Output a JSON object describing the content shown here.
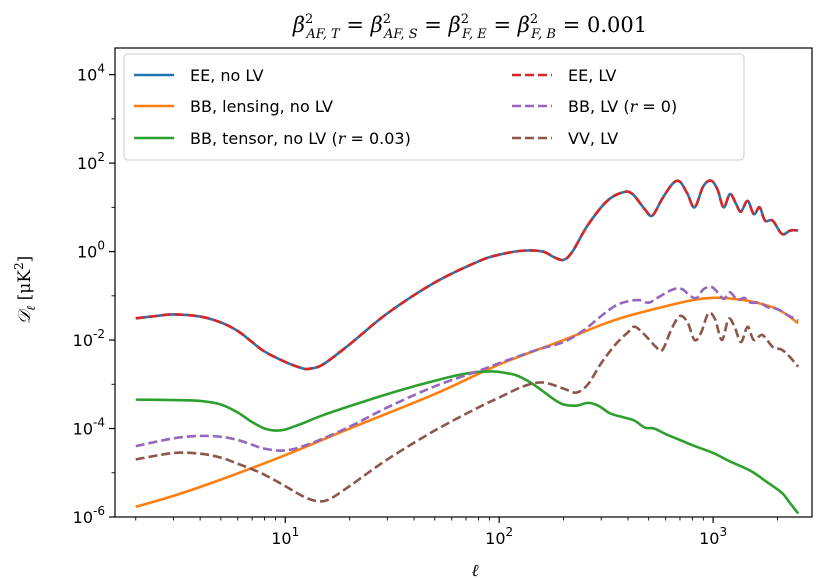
{
  "chart_data": {
    "type": "line",
    "title": "β²_{AF,T} = β²_{AF,S} = β²_{F,E} = β²_{F,B} = 0.001",
    "title_parts": {
      "beta": "β",
      "sup": "2",
      "sub1": "AF, T",
      "sub2": "AF, S",
      "sub3": "F, E",
      "sub4": "F, B",
      "eq": "=",
      "value": "0.001"
    },
    "xlabel": "ℓ",
    "ylabel_parts": {
      "main": "𝒟",
      "sub": "ℓ",
      "unit_open": "[μK",
      "unit_sup": "2",
      "unit_close": "]"
    },
    "x_scale": "log",
    "y_scale": "log",
    "xlim": [
      1.6,
      2900
    ],
    "ylim": [
      1e-06,
      40000.0
    ],
    "grid": false,
    "legend_position": "top",
    "xticks": [
      {
        "value": 10,
        "base": "10",
        "exp": "1"
      },
      {
        "value": 100,
        "base": "10",
        "exp": "2"
      },
      {
        "value": 1000,
        "base": "10",
        "exp": "3"
      }
    ],
    "yticks": [
      {
        "value": 1e-06,
        "base": "10",
        "exp": "-6"
      },
      {
        "value": 0.0001,
        "base": "10",
        "exp": "-4"
      },
      {
        "value": 0.01,
        "base": "10",
        "exp": "-2"
      },
      {
        "value": 1,
        "base": "10",
        "exp": "0"
      },
      {
        "value": 100,
        "base": "10",
        "exp": "2"
      },
      {
        "value": 10000,
        "base": "10",
        "exp": "4"
      }
    ],
    "series": [
      {
        "name": "EE, no LV",
        "color": "#1f77b4",
        "dash": false,
        "points": [
          [
            2,
            0.031
          ],
          [
            2.5,
            0.035
          ],
          [
            3,
            0.038
          ],
          [
            4,
            0.034
          ],
          [
            5,
            0.025
          ],
          [
            6,
            0.016
          ],
          [
            7,
            0.009
          ],
          [
            8,
            0.0055
          ],
          [
            10,
            0.0032
          ],
          [
            12,
            0.0023
          ],
          [
            13,
            0.00225
          ],
          [
            15,
            0.0028
          ],
          [
            20,
            0.008
          ],
          [
            30,
            0.04
          ],
          [
            50,
            0.2
          ],
          [
            80,
            0.6
          ],
          [
            100,
            0.85
          ],
          [
            130,
            1.05
          ],
          [
            160,
            1.0
          ],
          [
            180,
            0.75
          ],
          [
            200,
            0.65
          ],
          [
            220,
            1.0
          ],
          [
            260,
            4
          ],
          [
            320,
            14
          ],
          [
            380,
            22
          ],
          [
            420,
            20
          ],
          [
            480,
            9
          ],
          [
            520,
            6.5
          ],
          [
            580,
            16
          ],
          [
            650,
            35
          ],
          [
            700,
            38
          ],
          [
            760,
            20
          ],
          [
            820,
            10
          ],
          [
            900,
            30
          ],
          [
            980,
            40
          ],
          [
            1050,
            25
          ],
          [
            1120,
            10
          ],
          [
            1200,
            20
          ],
          [
            1280,
            12
          ],
          [
            1350,
            8
          ],
          [
            1450,
            14
          ],
          [
            1550,
            7
          ],
          [
            1650,
            10
          ],
          [
            1750,
            5
          ],
          [
            1900,
            5
          ],
          [
            2100,
            2.5
          ],
          [
            2300,
            3
          ],
          [
            2500,
            3
          ]
        ]
      },
      {
        "name": "BB, lensing, no LV",
        "color": "#ff7f0e",
        "dash": false,
        "points": [
          [
            2,
            1.7e-06
          ],
          [
            3,
            3e-06
          ],
          [
            5,
            7e-06
          ],
          [
            10,
            2.5e-05
          ],
          [
            20,
            0.0001
          ],
          [
            50,
            0.0006
          ],
          [
            100,
            0.0028
          ],
          [
            200,
            0.01
          ],
          [
            300,
            0.022
          ],
          [
            400,
            0.035
          ],
          [
            600,
            0.058
          ],
          [
            800,
            0.08
          ],
          [
            1000,
            0.09
          ],
          [
            1200,
            0.087
          ],
          [
            1500,
            0.075
          ],
          [
            2000,
            0.05
          ],
          [
            2500,
            0.024
          ]
        ]
      },
      {
        "name": "BB, tensor, no LV (r = 0.03)",
        "color": "#2ca02c",
        "dash": false,
        "points": [
          [
            2,
            0.00045
          ],
          [
            3,
            0.00044
          ],
          [
            4,
            0.00042
          ],
          [
            5,
            0.00035
          ],
          [
            6,
            0.00023
          ],
          [
            7,
            0.00014
          ],
          [
            8,
            0.0001
          ],
          [
            9,
            9e-05
          ],
          [
            10,
            9.5e-05
          ],
          [
            12,
            0.00013
          ],
          [
            15,
            0.0002
          ],
          [
            20,
            0.00032
          ],
          [
            30,
            0.0006
          ],
          [
            40,
            0.0009
          ],
          [
            50,
            0.0012
          ],
          [
            60,
            0.0015
          ],
          [
            70,
            0.00175
          ],
          [
            80,
            0.0019
          ],
          [
            90,
            0.00195
          ],
          [
            100,
            0.0019
          ],
          [
            120,
            0.0016
          ],
          [
            140,
            0.0011
          ],
          [
            160,
            0.0007
          ],
          [
            180,
            0.00046
          ],
          [
            200,
            0.00035
          ],
          [
            230,
            0.00033
          ],
          [
            260,
            0.00038
          ],
          [
            290,
            0.00033
          ],
          [
            330,
            0.00022
          ],
          [
            380,
            0.00018
          ],
          [
            430,
            0.00015
          ],
          [
            480,
            0.000105
          ],
          [
            530,
            0.0001
          ],
          [
            600,
            7.5e-05
          ],
          [
            700,
            5.5e-05
          ],
          [
            800,
            4.2e-05
          ],
          [
            1000,
            2.8e-05
          ],
          [
            1200,
            1.8e-05
          ],
          [
            1500,
            1.1e-05
          ],
          [
            1800,
            6e-06
          ],
          [
            2100,
            3.5e-06
          ],
          [
            2300,
            2e-06
          ],
          [
            2500,
            1.2e-06
          ]
        ]
      },
      {
        "name": "EE, LV",
        "color": "#d62728",
        "dash": true,
        "points": [
          [
            2,
            0.031
          ],
          [
            2.5,
            0.035
          ],
          [
            3,
            0.038
          ],
          [
            4,
            0.034
          ],
          [
            5,
            0.025
          ],
          [
            6,
            0.016
          ],
          [
            7,
            0.009
          ],
          [
            8,
            0.0055
          ],
          [
            10,
            0.0032
          ],
          [
            12,
            0.0023
          ],
          [
            13,
            0.00225
          ],
          [
            15,
            0.0028
          ],
          [
            20,
            0.008
          ],
          [
            30,
            0.04
          ],
          [
            50,
            0.2
          ],
          [
            80,
            0.6
          ],
          [
            100,
            0.85
          ],
          [
            130,
            1.05
          ],
          [
            160,
            1.0
          ],
          [
            180,
            0.75
          ],
          [
            200,
            0.65
          ],
          [
            220,
            1.0
          ],
          [
            260,
            4
          ],
          [
            320,
            14
          ],
          [
            380,
            22
          ],
          [
            420,
            20
          ],
          [
            480,
            9
          ],
          [
            520,
            6.5
          ],
          [
            580,
            16
          ],
          [
            650,
            35
          ],
          [
            700,
            38
          ],
          [
            760,
            20
          ],
          [
            820,
            10
          ],
          [
            900,
            30
          ],
          [
            980,
            40
          ],
          [
            1050,
            25
          ],
          [
            1120,
            10
          ],
          [
            1200,
            20
          ],
          [
            1280,
            12
          ],
          [
            1350,
            8
          ],
          [
            1450,
            14
          ],
          [
            1550,
            7
          ],
          [
            1650,
            10
          ],
          [
            1750,
            5
          ],
          [
            1900,
            5
          ],
          [
            2100,
            2.5
          ],
          [
            2300,
            3
          ],
          [
            2500,
            3
          ]
        ]
      },
      {
        "name": "BB, LV (r = 0)",
        "color": "#9467bd",
        "dash": true,
        "points": [
          [
            2,
            4e-05
          ],
          [
            3,
            6e-05
          ],
          [
            4,
            6.8e-05
          ],
          [
            5,
            6.5e-05
          ],
          [
            6,
            5.5e-05
          ],
          [
            7,
            4.3e-05
          ],
          [
            8,
            3.5e-05
          ],
          [
            10,
            3.2e-05
          ],
          [
            13,
            4.5e-05
          ],
          [
            20,
            0.00011
          ],
          [
            30,
            0.0003
          ],
          [
            50,
            0.0009
          ],
          [
            80,
            0.002
          ],
          [
            100,
            0.003
          ],
          [
            150,
            0.006
          ],
          [
            200,
            0.009
          ],
          [
            250,
            0.017
          ],
          [
            300,
            0.035
          ],
          [
            350,
            0.06
          ],
          [
            400,
            0.075
          ],
          [
            450,
            0.08
          ],
          [
            500,
            0.07
          ],
          [
            560,
            0.095
          ],
          [
            650,
            0.14
          ],
          [
            720,
            0.14
          ],
          [
            780,
            0.1
          ],
          [
            840,
            0.09
          ],
          [
            900,
            0.14
          ],
          [
            980,
            0.16
          ],
          [
            1050,
            0.12
          ],
          [
            1120,
            0.085
          ],
          [
            1200,
            0.12
          ],
          [
            1300,
            0.08
          ],
          [
            1400,
            0.09
          ],
          [
            1500,
            0.07
          ],
          [
            1650,
            0.07
          ],
          [
            1800,
            0.055
          ],
          [
            2000,
            0.05
          ],
          [
            2200,
            0.038
          ],
          [
            2500,
            0.028
          ]
        ]
      },
      {
        "name": "VV, LV",
        "color": "#8c564b",
        "dash": true,
        "points": [
          [
            2,
            2e-05
          ],
          [
            3,
            2.8e-05
          ],
          [
            4,
            2.7e-05
          ],
          [
            5,
            2.2e-05
          ],
          [
            6,
            1.6e-05
          ],
          [
            7,
            1.2e-05
          ],
          [
            8,
            9e-06
          ],
          [
            10,
            5e-06
          ],
          [
            12,
            3e-06
          ],
          [
            14,
            2.3e-06
          ],
          [
            16,
            2.5e-06
          ],
          [
            20,
            5e-06
          ],
          [
            30,
            2e-05
          ],
          [
            50,
            9e-05
          ],
          [
            80,
            0.0003
          ],
          [
            100,
            0.0005
          ],
          [
            130,
            0.0009
          ],
          [
            160,
            0.0011
          ],
          [
            200,
            0.0008
          ],
          [
            230,
            0.00065
          ],
          [
            260,
            0.001
          ],
          [
            300,
            0.003
          ],
          [
            350,
            0.008
          ],
          [
            400,
            0.015
          ],
          [
            430,
            0.02
          ],
          [
            480,
            0.013
          ],
          [
            540,
            0.007
          ],
          [
            580,
            0.006
          ],
          [
            640,
            0.018
          ],
          [
            700,
            0.035
          ],
          [
            760,
            0.025
          ],
          [
            820,
            0.01
          ],
          [
            880,
            0.015
          ],
          [
            950,
            0.04
          ],
          [
            1020,
            0.03
          ],
          [
            1100,
            0.01
          ],
          [
            1180,
            0.03
          ],
          [
            1260,
            0.02
          ],
          [
            1350,
            0.009
          ],
          [
            1450,
            0.02
          ],
          [
            1550,
            0.01
          ],
          [
            1700,
            0.013
          ],
          [
            1900,
            0.007
          ],
          [
            2100,
            0.006
          ],
          [
            2300,
            0.004
          ],
          [
            2500,
            0.0025
          ]
        ]
      }
    ],
    "legend": {
      "rows": [
        [
          "EE, no LV",
          "EE, LV"
        ],
        [
          "BB, lensing, no LV",
          "BB, LV (r = 0)"
        ],
        [
          "BB, tensor, no LV (r = 0.03)",
          "VV, LV"
        ]
      ]
    }
  }
}
